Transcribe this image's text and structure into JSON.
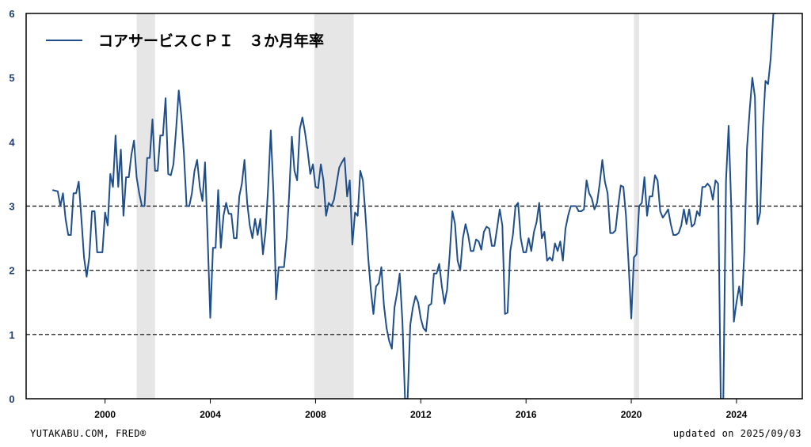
{
  "chart_data": {
    "type": "line",
    "title": "",
    "xlabel": "",
    "ylabel": "",
    "xlim": [
      1997.0,
      2026.5
    ],
    "ylim": [
      0,
      6
    ],
    "yticks": [
      0,
      1,
      2,
      3,
      4,
      5,
      6
    ],
    "xticks": [
      2000,
      2004,
      2008,
      2012,
      2016,
      2020,
      2024
    ],
    "reference_lines": [
      1,
      2,
      3
    ],
    "grid": false,
    "legend": "top-left",
    "line_color": "#1f4e8c",
    "recession_color": "#e6e6e6",
    "recessions": [
      [
        2001.2,
        2001.9
      ],
      [
        2007.95,
        2009.45
      ],
      [
        2020.1,
        2020.3
      ]
    ],
    "series": [
      {
        "name": "コアサービスＣＰＩ　３か月年率",
        "points": [
          [
            1998.0,
            3.25
          ],
          [
            1998.1,
            3.24
          ],
          [
            1998.2,
            3.23
          ],
          [
            1998.3,
            3.0
          ],
          [
            1998.4,
            3.2
          ],
          [
            1998.5,
            2.8
          ],
          [
            1998.6,
            2.55
          ],
          [
            1998.7,
            2.55
          ],
          [
            1998.8,
            3.2
          ],
          [
            1998.9,
            3.2
          ],
          [
            1999.0,
            3.38
          ],
          [
            1999.1,
            2.8
          ],
          [
            1999.2,
            2.2
          ],
          [
            1999.3,
            1.9
          ],
          [
            1999.4,
            2.2
          ],
          [
            1999.5,
            2.92
          ],
          [
            1999.6,
            2.92
          ],
          [
            1999.7,
            2.28
          ],
          [
            1999.8,
            2.28
          ],
          [
            1999.9,
            2.28
          ],
          [
            2000.0,
            2.9
          ],
          [
            2000.1,
            2.7
          ],
          [
            2000.2,
            3.5
          ],
          [
            2000.3,
            3.3
          ],
          [
            2000.4,
            4.1
          ],
          [
            2000.5,
            3.3
          ],
          [
            2000.6,
            3.88
          ],
          [
            2000.7,
            2.85
          ],
          [
            2000.8,
            3.45
          ],
          [
            2000.9,
            3.45
          ],
          [
            2001.0,
            3.8
          ],
          [
            2001.1,
            4.02
          ],
          [
            2001.2,
            3.45
          ],
          [
            2001.3,
            3.2
          ],
          [
            2001.4,
            3.0
          ],
          [
            2001.5,
            3.0
          ],
          [
            2001.6,
            3.75
          ],
          [
            2001.7,
            3.75
          ],
          [
            2001.8,
            4.35
          ],
          [
            2001.9,
            3.55
          ],
          [
            2002.0,
            3.55
          ],
          [
            2002.1,
            4.1
          ],
          [
            2002.2,
            4.1
          ],
          [
            2002.3,
            4.68
          ],
          [
            2002.4,
            3.5
          ],
          [
            2002.5,
            3.48
          ],
          [
            2002.6,
            3.65
          ],
          [
            2002.7,
            4.2
          ],
          [
            2002.8,
            4.8
          ],
          [
            2002.9,
            4.4
          ],
          [
            2003.0,
            3.8
          ],
          [
            2003.1,
            3.0
          ],
          [
            2003.2,
            3.0
          ],
          [
            2003.3,
            3.2
          ],
          [
            2003.4,
            3.55
          ],
          [
            2003.5,
            3.72
          ],
          [
            2003.6,
            3.3
          ],
          [
            2003.7,
            3.08
          ],
          [
            2003.8,
            3.68
          ],
          [
            2003.9,
            2.5
          ],
          [
            2004.0,
            1.26
          ],
          [
            2004.1,
            2.35
          ],
          [
            2004.2,
            2.35
          ],
          [
            2004.3,
            3.25
          ],
          [
            2004.4,
            2.35
          ],
          [
            2004.5,
            2.85
          ],
          [
            2004.6,
            3.05
          ],
          [
            2004.7,
            2.88
          ],
          [
            2004.8,
            2.88
          ],
          [
            2004.9,
            2.5
          ],
          [
            2005.0,
            2.5
          ],
          [
            2005.1,
            3.15
          ],
          [
            2005.2,
            3.35
          ],
          [
            2005.3,
            3.72
          ],
          [
            2005.4,
            3.05
          ],
          [
            2005.5,
            2.7
          ],
          [
            2005.6,
            2.5
          ],
          [
            2005.7,
            2.8
          ],
          [
            2005.8,
            2.55
          ],
          [
            2005.9,
            2.8
          ],
          [
            2006.0,
            2.25
          ],
          [
            2006.1,
            2.6
          ],
          [
            2006.2,
            3.3
          ],
          [
            2006.3,
            4.18
          ],
          [
            2006.4,
            3.2
          ],
          [
            2006.5,
            1.55
          ],
          [
            2006.6,
            2.05
          ],
          [
            2006.7,
            2.05
          ],
          [
            2006.8,
            2.05
          ],
          [
            2006.9,
            2.5
          ],
          [
            2007.0,
            3.2
          ],
          [
            2007.1,
            4.08
          ],
          [
            2007.2,
            3.55
          ],
          [
            2007.3,
            3.4
          ],
          [
            2007.4,
            4.2
          ],
          [
            2007.5,
            4.38
          ],
          [
            2007.6,
            4.15
          ],
          [
            2007.7,
            3.85
          ],
          [
            2007.8,
            3.5
          ],
          [
            2007.9,
            3.65
          ],
          [
            2008.0,
            3.3
          ],
          [
            2008.1,
            3.28
          ],
          [
            2008.2,
            3.65
          ],
          [
            2008.3,
            3.4
          ],
          [
            2008.4,
            2.85
          ],
          [
            2008.5,
            3.05
          ],
          [
            2008.6,
            3.0
          ],
          [
            2008.7,
            3.1
          ],
          [
            2008.8,
            3.35
          ],
          [
            2008.9,
            3.6
          ],
          [
            2009.0,
            3.68
          ],
          [
            2009.1,
            3.75
          ],
          [
            2009.2,
            3.15
          ],
          [
            2009.3,
            3.4
          ],
          [
            2009.4,
            2.4
          ],
          [
            2009.5,
            2.9
          ],
          [
            2009.6,
            2.85
          ],
          [
            2009.7,
            3.55
          ],
          [
            2009.8,
            3.4
          ],
          [
            2009.9,
            2.85
          ],
          [
            2010.0,
            2.2
          ],
          [
            2010.1,
            1.7
          ],
          [
            2010.2,
            1.32
          ],
          [
            2010.3,
            1.75
          ],
          [
            2010.4,
            1.8
          ],
          [
            2010.5,
            2.05
          ],
          [
            2010.6,
            1.45
          ],
          [
            2010.7,
            1.1
          ],
          [
            2010.8,
            0.9
          ],
          [
            2010.9,
            0.78
          ],
          [
            2011.0,
            1.42
          ],
          [
            2011.1,
            1.65
          ],
          [
            2011.2,
            1.95
          ],
          [
            2011.3,
            1.2
          ],
          [
            2011.4,
            0.0
          ],
          [
            2011.5,
            0.0
          ],
          [
            2011.6,
            1.15
          ],
          [
            2011.7,
            1.42
          ],
          [
            2011.8,
            1.6
          ],
          [
            2011.9,
            1.5
          ],
          [
            2012.0,
            1.25
          ],
          [
            2012.1,
            1.1
          ],
          [
            2012.2,
            1.05
          ],
          [
            2012.3,
            1.45
          ],
          [
            2012.4,
            1.48
          ],
          [
            2012.5,
            1.95
          ],
          [
            2012.6,
            1.95
          ],
          [
            2012.7,
            2.1
          ],
          [
            2012.8,
            1.75
          ],
          [
            2012.9,
            1.48
          ],
          [
            2013.0,
            1.7
          ],
          [
            2013.1,
            2.25
          ],
          [
            2013.2,
            2.92
          ],
          [
            2013.3,
            2.72
          ],
          [
            2013.4,
            2.15
          ],
          [
            2013.5,
            2.0
          ],
          [
            2013.6,
            2.5
          ],
          [
            2013.7,
            2.72
          ],
          [
            2013.8,
            2.55
          ],
          [
            2013.9,
            2.3
          ],
          [
            2014.0,
            2.3
          ],
          [
            2014.1,
            2.48
          ],
          [
            2014.2,
            2.45
          ],
          [
            2014.3,
            2.32
          ],
          [
            2014.4,
            2.6
          ],
          [
            2014.5,
            2.68
          ],
          [
            2014.6,
            2.65
          ],
          [
            2014.7,
            2.38
          ],
          [
            2014.8,
            2.38
          ],
          [
            2014.9,
            2.65
          ],
          [
            2015.0,
            2.95
          ],
          [
            2015.1,
            2.7
          ],
          [
            2015.2,
            1.32
          ],
          [
            2015.3,
            1.34
          ],
          [
            2015.4,
            2.3
          ],
          [
            2015.5,
            2.55
          ],
          [
            2015.6,
            3.0
          ],
          [
            2015.7,
            3.05
          ],
          [
            2015.8,
            2.5
          ],
          [
            2015.9,
            2.28
          ],
          [
            2016.0,
            2.28
          ],
          [
            2016.1,
            2.5
          ],
          [
            2016.2,
            2.3
          ],
          [
            2016.3,
            2.6
          ],
          [
            2016.4,
            2.75
          ],
          [
            2016.5,
            3.05
          ],
          [
            2016.6,
            2.5
          ],
          [
            2016.7,
            2.6
          ],
          [
            2016.8,
            2.15
          ],
          [
            2016.9,
            2.2
          ],
          [
            2017.0,
            2.15
          ],
          [
            2017.1,
            2.42
          ],
          [
            2017.2,
            2.3
          ],
          [
            2017.3,
            2.45
          ],
          [
            2017.4,
            2.15
          ],
          [
            2017.5,
            2.65
          ],
          [
            2017.6,
            2.85
          ],
          [
            2017.7,
            3.0
          ],
          [
            2017.8,
            3.0
          ],
          [
            2017.9,
            3.0
          ],
          [
            2018.0,
            2.92
          ],
          [
            2018.1,
            2.92
          ],
          [
            2018.2,
            2.95
          ],
          [
            2018.3,
            3.4
          ],
          [
            2018.4,
            3.2
          ],
          [
            2018.5,
            3.12
          ],
          [
            2018.6,
            2.95
          ],
          [
            2018.7,
            3.05
          ],
          [
            2018.8,
            3.35
          ],
          [
            2018.9,
            3.72
          ],
          [
            2019.0,
            3.38
          ],
          [
            2019.1,
            3.2
          ],
          [
            2019.2,
            2.58
          ],
          [
            2019.3,
            2.58
          ],
          [
            2019.4,
            2.62
          ],
          [
            2019.5,
            3.0
          ],
          [
            2019.6,
            3.32
          ],
          [
            2019.7,
            3.3
          ],
          [
            2019.8,
            2.85
          ],
          [
            2019.9,
            2.1
          ],
          [
            2020.0,
            1.25
          ],
          [
            2020.1,
            2.2
          ],
          [
            2020.2,
            2.25
          ],
          [
            2020.3,
            3.0
          ],
          [
            2020.4,
            3.05
          ],
          [
            2020.5,
            3.45
          ],
          [
            2020.6,
            2.85
          ],
          [
            2020.7,
            3.15
          ],
          [
            2020.8,
            3.15
          ],
          [
            2020.9,
            3.48
          ],
          [
            2021.0,
            3.4
          ],
          [
            2021.1,
            2.92
          ],
          [
            2021.2,
            2.82
          ],
          [
            2021.3,
            2.88
          ],
          [
            2021.4,
            2.95
          ],
          [
            2021.5,
            2.72
          ],
          [
            2021.6,
            2.55
          ],
          [
            2021.7,
            2.55
          ],
          [
            2021.8,
            2.58
          ],
          [
            2021.9,
            2.7
          ],
          [
            2022.0,
            2.95
          ],
          [
            2022.1,
            2.72
          ],
          [
            2022.2,
            2.95
          ],
          [
            2022.3,
            2.68
          ],
          [
            2022.4,
            2.72
          ],
          [
            2022.5,
            2.92
          ],
          [
            2022.6,
            2.85
          ],
          [
            2022.7,
            3.3
          ],
          [
            2022.8,
            3.3
          ],
          [
            2022.9,
            3.35
          ],
          [
            2023.0,
            3.3
          ],
          [
            2023.1,
            3.1
          ],
          [
            2023.2,
            3.4
          ],
          [
            2023.3,
            3.35
          ],
          [
            2023.4,
            0.0
          ],
          [
            2023.5,
            0.0
          ],
          [
            2023.6,
            3.4
          ],
          [
            2023.7,
            4.25
          ],
          [
            2023.8,
            3.0
          ],
          [
            2023.9,
            1.2
          ],
          [
            2024.0,
            1.5
          ],
          [
            2024.1,
            1.75
          ],
          [
            2024.2,
            1.45
          ],
          [
            2024.3,
            2.3
          ],
          [
            2024.4,
            3.9
          ],
          [
            2024.5,
            4.5
          ],
          [
            2024.6,
            5.0
          ],
          [
            2024.7,
            4.7
          ],
          [
            2024.8,
            2.72
          ],
          [
            2024.9,
            2.9
          ],
          [
            2025.0,
            4.2
          ],
          [
            2025.1,
            4.95
          ],
          [
            2025.2,
            4.9
          ],
          [
            2025.3,
            5.3
          ],
          [
            2025.4,
            6.0
          ],
          [
            2025.5,
            6.0
          ]
        ]
      }
    ],
    "footer_left": "YUTAKABU.COM, FRED®",
    "footer_right": "updated on 2025/09/03"
  }
}
